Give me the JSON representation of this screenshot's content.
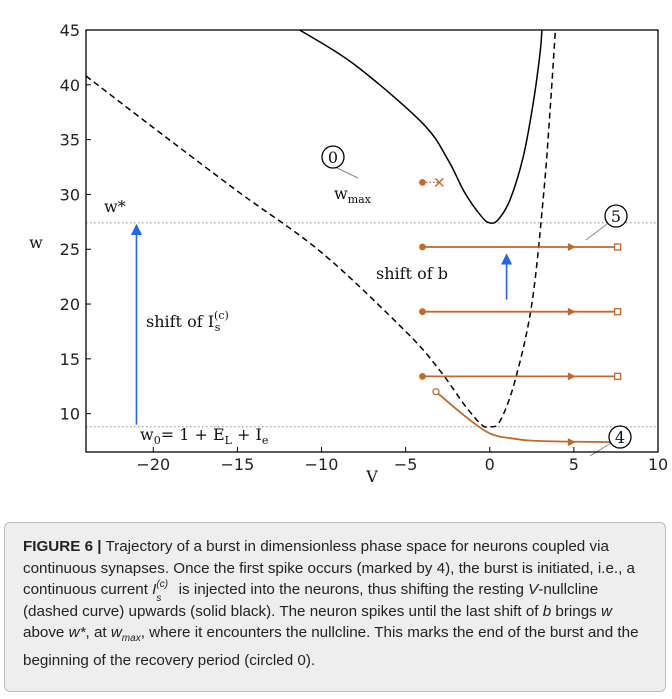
{
  "chart_data": {
    "type": "line",
    "xlabel": "V",
    "ylabel": "w",
    "xlim": [
      -24,
      10
    ],
    "ylim": [
      6.5,
      45
    ],
    "x_ticks": [
      "−20",
      "−15",
      "−10",
      "−5",
      "0",
      "5",
      "10"
    ],
    "x_tick_values": [
      -20,
      -15,
      -10,
      -5,
      0,
      5,
      10
    ],
    "y_ticks": [
      "10",
      "15",
      "20",
      "25",
      "30",
      "35",
      "40",
      "45"
    ],
    "y_tick_values": [
      10,
      15,
      20,
      25,
      30,
      35,
      40,
      45
    ],
    "grid": false,
    "curves": {
      "solid_nullcline": {
        "style": "solid",
        "color": "#000000",
        "points": [
          [
            -11.3,
            45
          ],
          [
            -8,
            41.8
          ],
          [
            -4,
            36.5
          ],
          [
            -2.5,
            33.2
          ],
          [
            -1.5,
            30.2
          ],
          [
            -0.5,
            28.0
          ],
          [
            0,
            27.4
          ],
          [
            0.5,
            27.7
          ],
          [
            1.2,
            29.5
          ],
          [
            2.0,
            33.5
          ],
          [
            2.6,
            38.5
          ],
          [
            3.0,
            43
          ],
          [
            3.1,
            45
          ]
        ]
      },
      "dashed_nullcline": {
        "style": "dashed",
        "color": "#000000",
        "points": [
          [
            -24,
            40.8
          ],
          [
            -20,
            36.1
          ],
          [
            -15,
            30.3
          ],
          [
            -10,
            24.7
          ],
          [
            -5,
            17.5
          ],
          [
            -3,
            14.0
          ],
          [
            -1.5,
            10.8
          ],
          [
            -0.5,
            9.0
          ],
          [
            0,
            8.8
          ],
          [
            0.6,
            9.3
          ],
          [
            1.5,
            13.0
          ],
          [
            2.5,
            20.0
          ],
          [
            3.2,
            30.0
          ],
          [
            3.6,
            38.0
          ],
          [
            3.9,
            45
          ]
        ]
      }
    },
    "reference_lines": [
      {
        "y": 27.4,
        "label": "w*",
        "color": "#888888"
      },
      {
        "y": 8.8,
        "label": "w₀= 1 + Eʟ + Iₑ",
        "color": "#888888"
      }
    ],
    "trajectories": [
      {
        "from": [
          -4,
          25.2
        ],
        "to": [
          7.6,
          25.2
        ]
      },
      {
        "from": [
          -4,
          19.3
        ],
        "to": [
          7.6,
          19.3
        ]
      },
      {
        "from": [
          -4,
          13.4
        ],
        "to": [
          7.6,
          13.4
        ]
      }
    ],
    "burst_start_curve": {
      "points": [
        [
          -3.2,
          12.0
        ],
        [
          -1.5,
          9.8
        ],
        [
          0,
          8.2
        ],
        [
          1.5,
          7.7
        ],
        [
          3,
          7.5
        ],
        [
          7.6,
          7.4
        ]
      ]
    },
    "wmax_point": {
      "dot": [
        -4,
        31.1
      ],
      "cross": [
        -3,
        31.1
      ]
    },
    "arrows": [
      {
        "x": -21,
        "from": 9.0,
        "to": 27.4,
        "color": "#2563eb"
      },
      {
        "x": 1,
        "from": 20.4,
        "to": 24.7,
        "color": "#2563eb"
      }
    ],
    "annotations": {
      "circle0": "0",
      "circle5": "5",
      "circle4": "4",
      "wmax_main": "w",
      "wmax_sub": "max",
      "wstar": "w*",
      "shift_b": "shift of b",
      "shift_is_main": "shift of I",
      "shift_is_sub": "s",
      "shift_is_sup": "(c)",
      "w0_main": "w",
      "w0_sub": "0",
      "w0_mid": "= 1 + E",
      "w0_sub2": "L",
      "w0_end": " + I",
      "w0_sub3": "e"
    },
    "colors": {
      "trajectory": "#c0692a",
      "arrow": "#2563eb",
      "reference": "#888888",
      "nullcline": "#000000"
    }
  },
  "caption": {
    "label": "FIGURE 6 |",
    "text_1": " Trajectory of a burst in dimensionless phase space for neurons coupled via continuous synapses. Once the first spike occurs (marked by 4), the burst is initiated, i.e., a continuous current ",
    "is_var": "I",
    "is_sub": "s",
    "is_sup": "(c)",
    "text_2": " is injected into the neurons, thus shifting the resting ",
    "v_var": "V",
    "text_3": "-nullcline (dashed curve) upwards (solid black). The neuron spikes until the last shift of ",
    "b_var": "b",
    "text_4": " brings ",
    "w_var": "w",
    "text_5": " above ",
    "wstar_var": "w*",
    "text_6": ", at ",
    "wmax_var": "w",
    "wmax_sub": "max",
    "text_7": ", where it encounters the nullcline. This marks the end of the burst and the beginning of the recovery period (circled 0)."
  }
}
